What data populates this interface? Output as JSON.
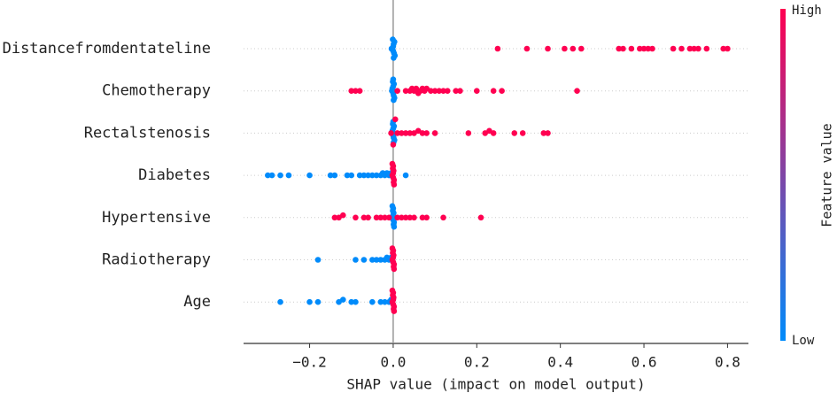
{
  "chart_data": {
    "type": "beeswarm",
    "xlabel": "SHAP value (impact on model output)",
    "xlim": [
      -0.358,
      0.85
    ],
    "xticks": [
      {
        "value": -0.2,
        "label": "−0.2"
      },
      {
        "value": 0,
        "label": "0.0"
      },
      0.2,
      0.4,
      0.6,
      0.8
    ],
    "colorbar": {
      "label": "Feature value",
      "max_label": "High",
      "min_label": "Low",
      "max_color": "#ff0051",
      "min_color": "#008bfb"
    },
    "features": [
      {
        "name": "Distancefromdentateline",
        "min_values": [
          -0.004,
          -0.002,
          0,
          0,
          0.001,
          0.002,
          0.003,
          0.004,
          -0.001,
          0.001
        ],
        "max_values": [
          0.25,
          0.32,
          0.37,
          0.41,
          0.43,
          0.45,
          0.54,
          0.55,
          0.57,
          0.59,
          0.6,
          0.61,
          0.62,
          0.67,
          0.69,
          0.71,
          0.72,
          0.73,
          0.75,
          0.79,
          0.8
        ]
      },
      {
        "name": "Chemotherapy",
        "min_values": [
          -0.003,
          -0.002,
          0,
          0,
          0.001,
          0.002,
          0.003,
          -0.001,
          0.001,
          0
        ],
        "max_values": [
          -0.1,
          -0.09,
          -0.08,
          0.01,
          0.03,
          0.04,
          0.045,
          0.05,
          0.055,
          0.06,
          0.065,
          0.07,
          0.075,
          0.08,
          0.09,
          0.1,
          0.11,
          0.12,
          0.13,
          0.15,
          0.16,
          0.2,
          0.24,
          0.26,
          0.44
        ]
      },
      {
        "name": "Rectalstenosis",
        "min_values": [
          -0.003,
          -0.002,
          0,
          0,
          0.001,
          0.002,
          0.003,
          -0.001,
          0.001,
          0
        ],
        "max_values": [
          -0.005,
          0,
          0.005,
          0.01,
          0.02,
          0.03,
          0.04,
          0.05,
          0.06,
          0.07,
          0.08,
          0.1,
          0.18,
          0.22,
          0.23,
          0.24,
          0.29,
          0.31,
          0.36,
          0.37
        ]
      },
      {
        "name": "Diabetes",
        "min_values": [
          -0.3,
          -0.29,
          -0.27,
          -0.25,
          -0.2,
          -0.15,
          -0.14,
          -0.11,
          -0.1,
          -0.08,
          -0.07,
          -0.06,
          -0.05,
          -0.04,
          -0.03,
          -0.025,
          -0.02,
          -0.015,
          -0.01,
          -0.005,
          0.03
        ],
        "max_values": [
          -0.002,
          0,
          0,
          0.001,
          0.002,
          -0.001,
          0.001,
          0,
          0.002,
          -0.002
        ]
      },
      {
        "name": "Hypertensive",
        "min_values": [
          -0.002,
          0,
          0,
          0.001,
          0.002,
          -0.001,
          0.001,
          0,
          0.002,
          -0.002
        ],
        "max_values": [
          -0.14,
          -0.13,
          -0.12,
          -0.09,
          -0.07,
          -0.06,
          -0.04,
          -0.03,
          -0.02,
          -0.01,
          0.01,
          0.02,
          0.03,
          0.04,
          0.05,
          0.07,
          0.08,
          0.12,
          0.21
        ]
      },
      {
        "name": "Radiotherapy",
        "min_values": [
          -0.18,
          -0.09,
          -0.07,
          -0.05,
          -0.04,
          -0.03,
          -0.02,
          -0.015,
          -0.01,
          -0.005
        ],
        "max_values": [
          -0.002,
          0,
          0,
          0.001,
          0.002,
          -0.001,
          0.001,
          0,
          0.002,
          -0.002
        ]
      },
      {
        "name": "Age",
        "min_values": [
          -0.27,
          -0.2,
          -0.18,
          -0.13,
          -0.12,
          -0.1,
          -0.09,
          -0.05,
          -0.03,
          -0.02,
          -0.01,
          -0.005
        ],
        "max_values": [
          -0.002,
          0,
          0,
          0.001,
          0.002,
          -0.001,
          0.001,
          0,
          0.002,
          -0.002
        ]
      }
    ]
  }
}
